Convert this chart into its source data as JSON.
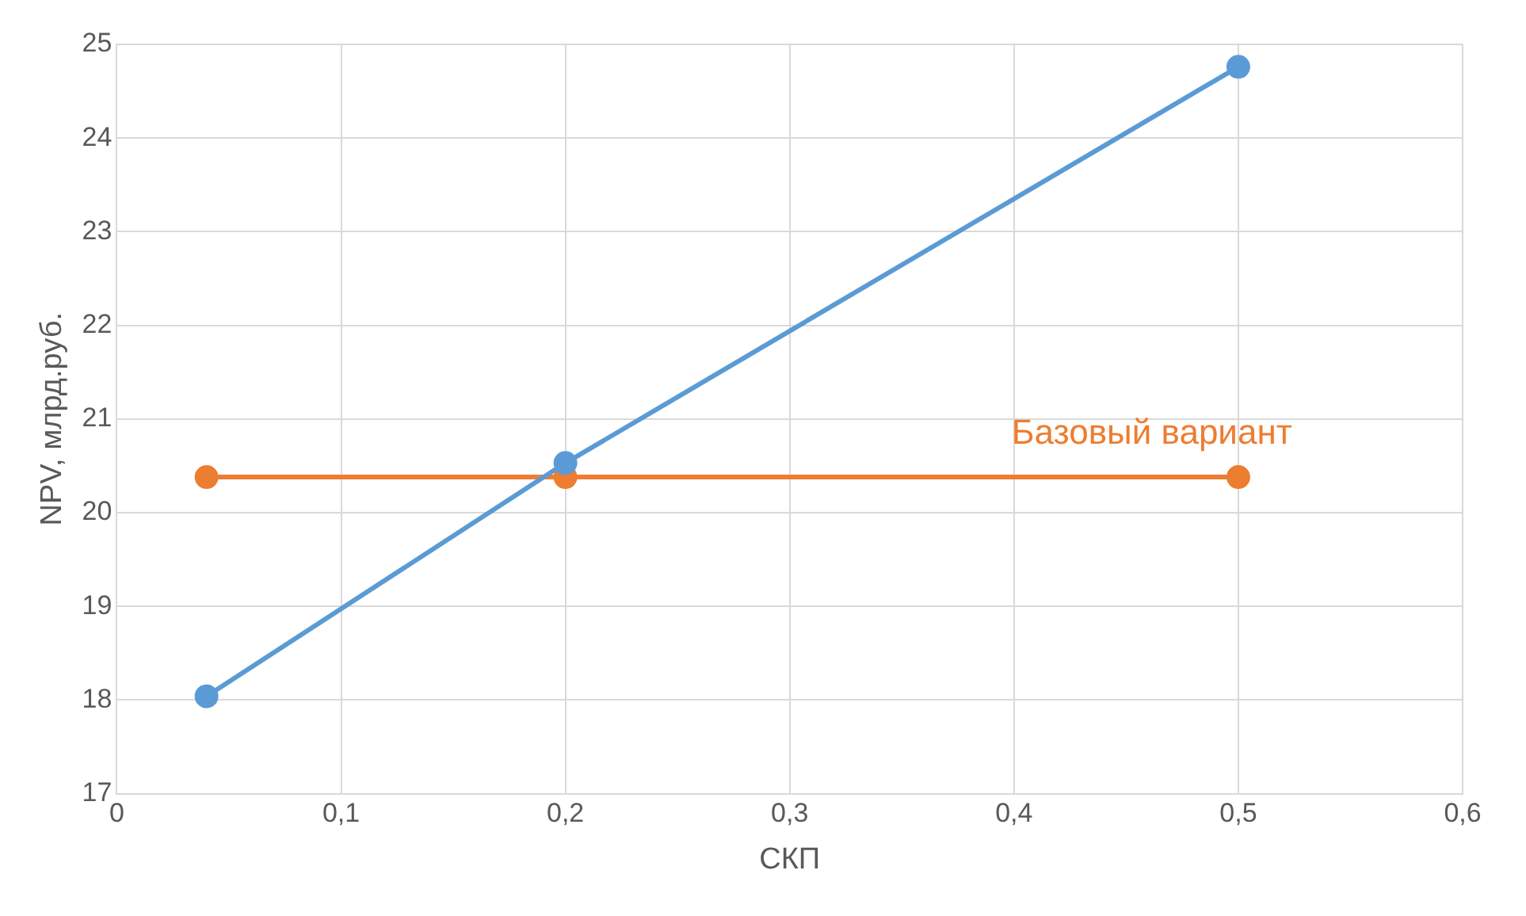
{
  "chart_data": {
    "type": "line",
    "xlabel": "СКП",
    "ylabel": "NPV, млрд.руб.",
    "xlim": [
      0,
      0.6
    ],
    "xticks": [
      0,
      {
        "value": 0.1,
        "label": "0,1"
      },
      {
        "value": 0.2,
        "label": "0,2"
      },
      {
        "value": 0.3,
        "label": "0,3"
      },
      {
        "value": 0.4,
        "label": "0,4"
      },
      {
        "value": 0.5,
        "label": "0,5"
      },
      {
        "value": 0.6,
        "label": "0,6"
      }
    ],
    "ylim": [
      17,
      25
    ],
    "yticks": [
      17,
      18,
      19,
      20,
      21,
      22,
      23,
      24,
      25
    ],
    "grid": true,
    "legend": false,
    "marker": "circle",
    "series": [
      {
        "color": "#5b9bd5",
        "x": [
          0.04,
          0.2,
          0.5
        ],
        "values": [
          18.04,
          20.53,
          24.76
        ]
      },
      {
        "name": "Базовый вариант",
        "color": "#ed7d31",
        "x": [
          0.04,
          0.2,
          0.5
        ],
        "values": [
          20.38,
          20.38,
          20.38
        ]
      }
    ]
  }
}
